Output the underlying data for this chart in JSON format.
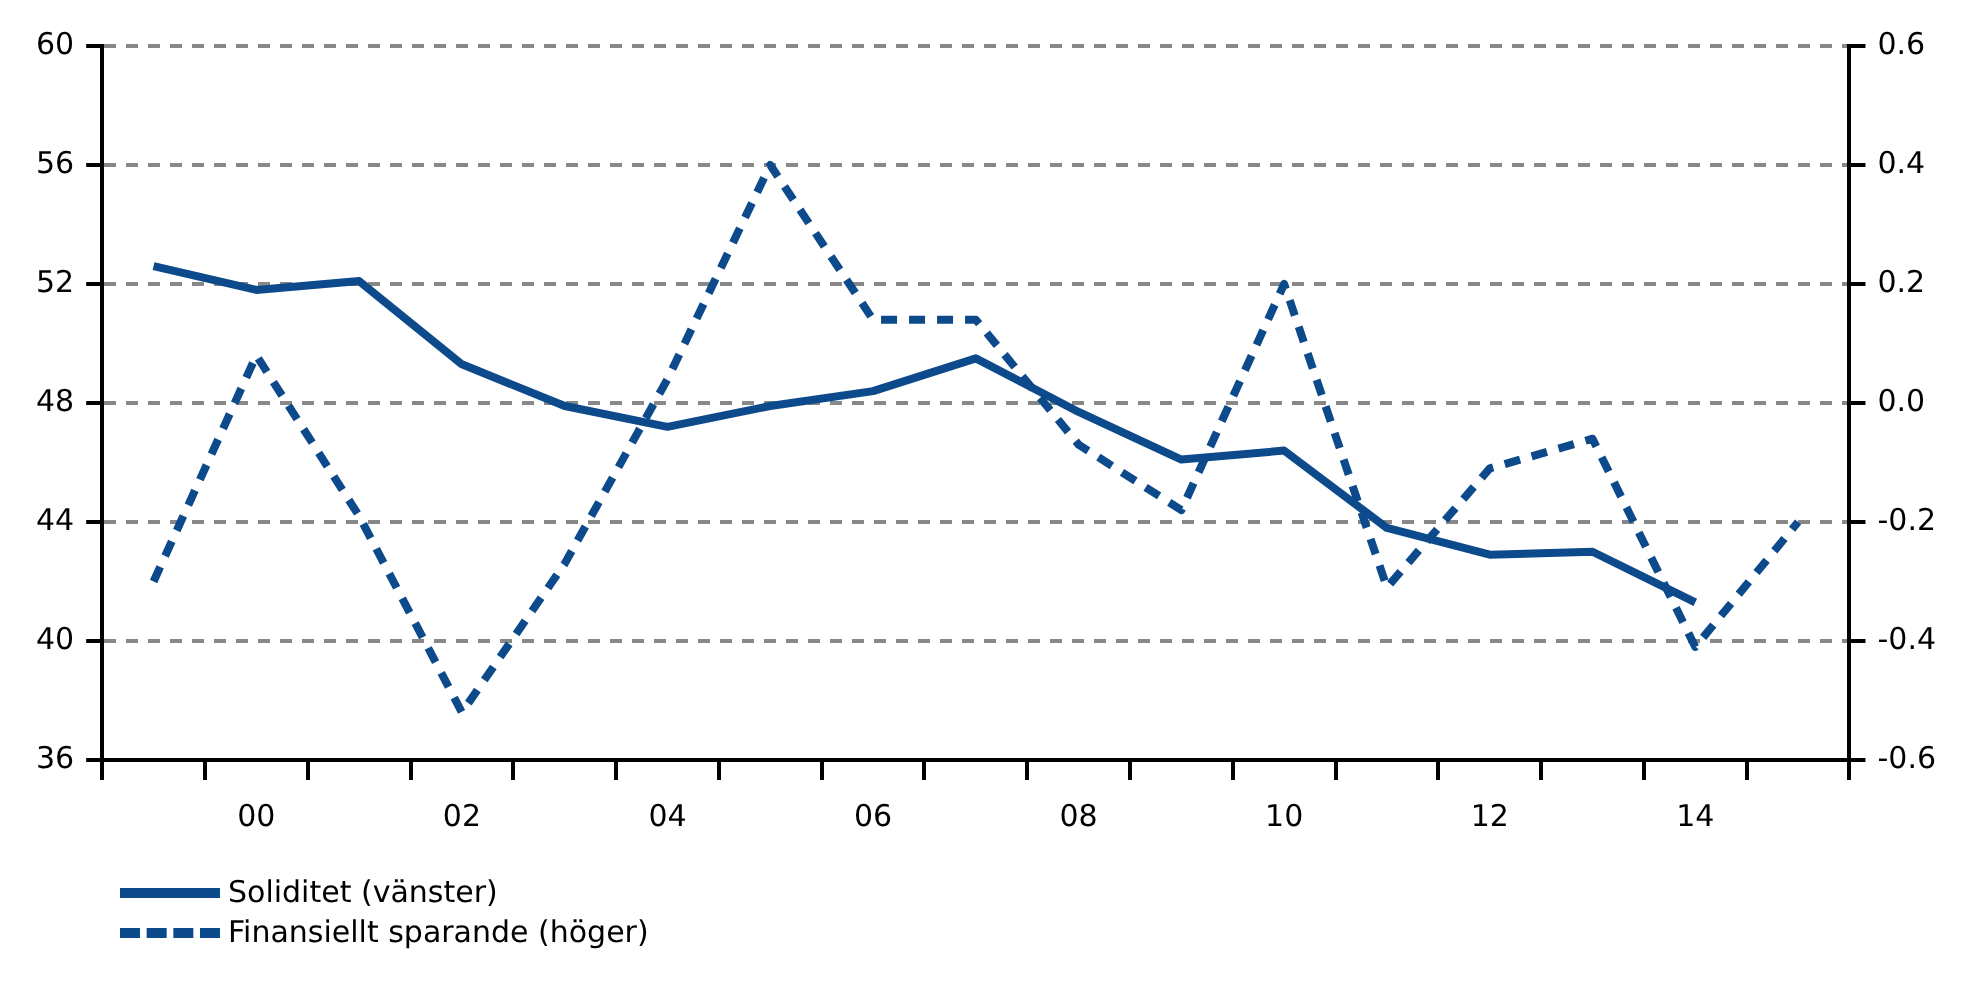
{
  "chart_data": {
    "type": "line",
    "categories": [
      null,
      "00",
      null,
      "02",
      null,
      "04",
      null,
      "06",
      null,
      "08",
      null,
      "10",
      null,
      "12",
      null,
      "14",
      null
    ],
    "series": [
      {
        "name": "Soliditet (vänster)",
        "color": "#0d4a8c",
        "line_style": "solid",
        "values": [
          52.6,
          51.8,
          52.1,
          49.3,
          47.9,
          47.2,
          47.9,
          48.4,
          49.5,
          47.7,
          46.1,
          46.4,
          43.8,
          42.9,
          43.0,
          41.3,
          null
        ]
      },
      {
        "name": "Finansiellt sparande (höger)",
        "color": "#0d4a8c",
        "line_style": "dashed",
        "axis": "y2",
        "values": [
          -0.3,
          0.08,
          -0.19,
          -0.52,
          -0.27,
          0.04,
          0.4,
          0.14,
          0.14,
          -0.07,
          -0.18,
          0.2,
          -0.31,
          -0.11,
          -0.06,
          -0.41,
          -0.2
        ]
      }
    ],
    "ylim": [
      36,
      60
    ],
    "yticks": [
      36,
      40,
      44,
      48,
      52,
      56,
      60
    ],
    "y2lim": [
      -0.6,
      0.6
    ],
    "y2ticks": [
      -0.6,
      -0.4,
      -0.2,
      {
        "value": 0,
        "label": "0.0"
      },
      0.2,
      0.4,
      0.6
    ],
    "grid": "y",
    "legend": "bottom",
    "marker": "none"
  }
}
